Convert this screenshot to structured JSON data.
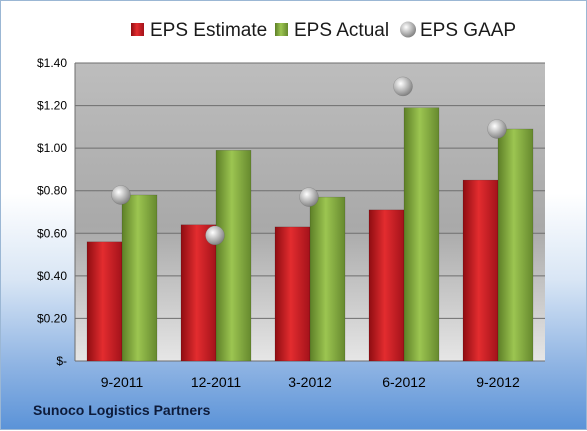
{
  "company": "Sunoco Logistics Partners",
  "chart_data": {
    "type": "bar",
    "categories": [
      "9-2011",
      "12-2011",
      "3-2012",
      "6-2012",
      "9-2012"
    ],
    "series": [
      {
        "name": "EPS Estimate",
        "kind": "bar",
        "color": "#c0141b",
        "values": [
          0.56,
          0.64,
          0.63,
          0.71,
          0.85
        ]
      },
      {
        "name": "EPS Actual",
        "kind": "bar",
        "color": "#7aa33a",
        "values": [
          0.78,
          0.99,
          0.77,
          1.19,
          1.09
        ]
      },
      {
        "name": "EPS GAAP",
        "kind": "marker",
        "color": "#a8a8a8",
        "values": [
          0.78,
          0.59,
          0.77,
          1.29,
          1.09
        ]
      }
    ],
    "ylim": [
      0,
      1.4
    ],
    "yticks": [
      0,
      0.2,
      0.4,
      0.6,
      0.8,
      1.0,
      1.2,
      1.4
    ],
    "ytick_labels": [
      "$-",
      "$0.20",
      "$0.40",
      "$0.60",
      "$0.80",
      "$1.00",
      "$1.20",
      "$1.40"
    ],
    "legend_position": "top",
    "grid": true
  }
}
